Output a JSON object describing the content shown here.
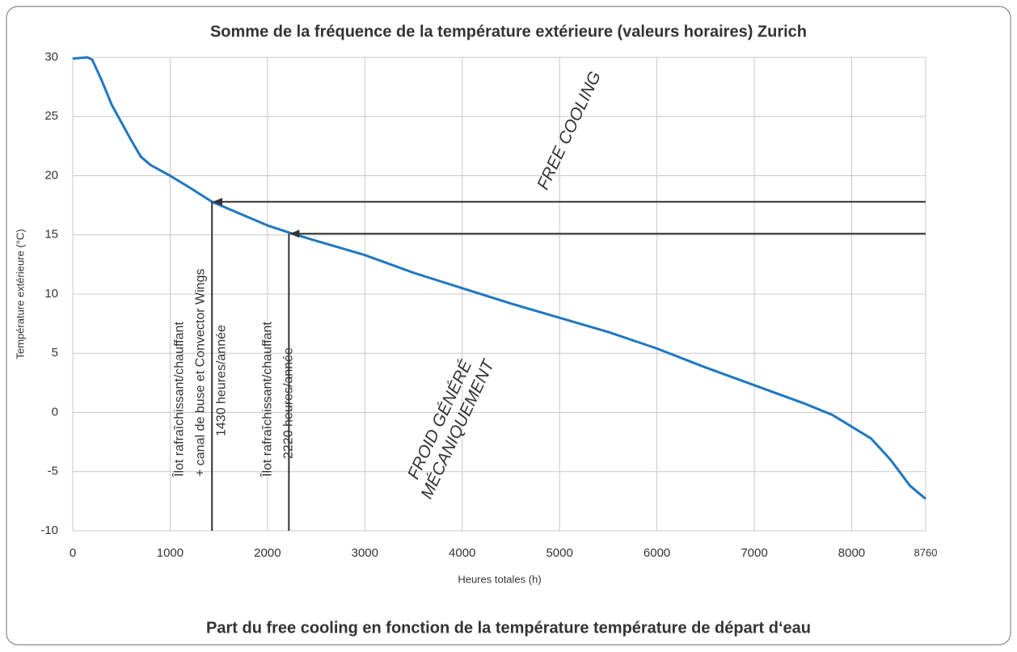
{
  "chart_data": {
    "type": "line",
    "title": "Somme de la fréquence de la température extérieure (valeurs horaires) Zurich",
    "footer": "Part du free cooling en fonction de la température température de départ d‘eau",
    "x_label": "Heures totales (h)",
    "y_label": "Température extérieure (°C)",
    "x": [
      0,
      150,
      200,
      300,
      400,
      500,
      600,
      700,
      800,
      1000,
      1200,
      1430,
      1600,
      1800,
      2000,
      2220,
      2500,
      3000,
      3500,
      4000,
      4500,
      5000,
      5500,
      6000,
      6500,
      7000,
      7500,
      7800,
      8000,
      8200,
      8400,
      8600,
      8760
    ],
    "series": [
      {
        "name": "Zurich",
        "color": "#1f77c0",
        "values": [
          29.9,
          30,
          29.8,
          28,
          26,
          24.5,
          23,
          21.6,
          20.9,
          20,
          19,
          17.8,
          17.2,
          16.5,
          15.8,
          15.2,
          14.5,
          13.3,
          11.8,
          10.5,
          9.2,
          8,
          6.8,
          5.4,
          3.8,
          2.3,
          0.8,
          -0.2,
          -1.2,
          -2.2,
          -4,
          -6.2,
          -7.3
        ]
      }
    ],
    "xlim": [
      0,
      8760
    ],
    "ylim": [
      -10,
      30
    ],
    "xticks": [
      0,
      1000,
      2000,
      3000,
      4000,
      5000,
      6000,
      7000,
      8000,
      8760
    ],
    "yticks": [
      -10,
      -5,
      0,
      5,
      10,
      15,
      20,
      25,
      30
    ],
    "grid": true,
    "thresholds": [
      {
        "x": 1430,
        "y": 17.8,
        "lines": [
          "Îlot rafraîchissant/chauffant",
          "+ canal de buse et Convector Wings",
          "1430 heures/année"
        ]
      },
      {
        "x": 2220,
        "y": 15.1,
        "lines": [
          "Îlot rafraîchissant/chauffant",
          "2220 heures/année"
        ]
      }
    ],
    "annotations": [
      [
        "FREE COOLING"
      ],
      [
        "FROID GÉNÉRÉ",
        "MÉCANIQUEMENT"
      ]
    ]
  }
}
